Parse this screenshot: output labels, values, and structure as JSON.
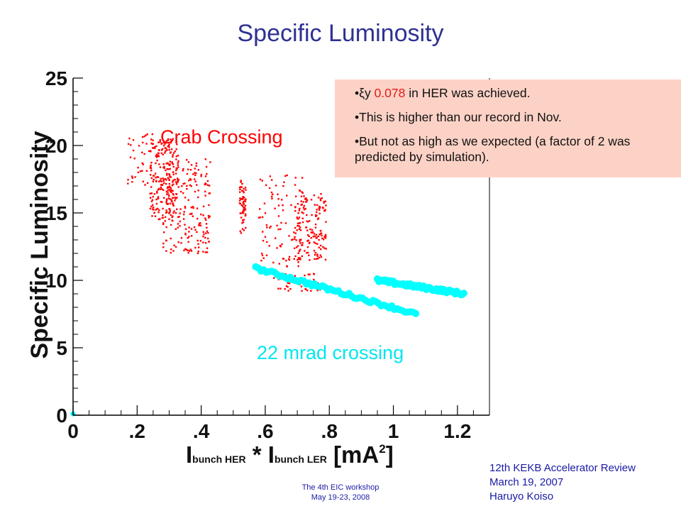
{
  "slide": {
    "title": "Specific Luminosity"
  },
  "notes": {
    "bullet1_prefix": "•ξy  ",
    "bullet1_value": "0.078",
    "bullet1_suffix": " in HER was achieved.",
    "bullet2": "•This is higher than our record in Nov.",
    "bullet3": "•But not as high as we expected (a factor of 2 was predicted by simulation)."
  },
  "labels": {
    "crab": "Crab Crossing",
    "mrad": "22 mrad crossing"
  },
  "footer": {
    "review_line1": "12th KEKB Accelerator Review",
    "review_line2": "March 19, 2007",
    "review_line3": "Haruyo Koiso",
    "workshop_line1": "The 4th EIC workshop",
    "workshop_line2": "May 19-23, 2008"
  },
  "axis": {
    "ylabel": "Specific Luminosity",
    "xlabel_I1": "I",
    "xlabel_sub1": "bunch HER",
    "xlabel_mid": " * I",
    "xlabel_sub2": "bunch LER",
    "xlabel_unit_open": " [mA",
    "xlabel_sup": "2",
    "xlabel_unit_close": "]"
  },
  "chart_data": {
    "type": "scatter",
    "xlim": [
      0,
      1.3
    ],
    "ylim": [
      0,
      25
    ],
    "x_tick_labels": [
      "0",
      ".2",
      ".4",
      ".6",
      ".8",
      "1",
      "1.2"
    ],
    "x_tick_values": [
      0,
      0.2,
      0.4,
      0.6,
      0.8,
      1.0,
      1.2
    ],
    "y_tick_labels": [
      "0",
      "5",
      "10",
      "15",
      "20",
      "25"
    ],
    "y_tick_values": [
      0,
      5,
      10,
      15,
      20,
      25
    ],
    "grid": false,
    "series": [
      {
        "name": "Crab Crossing",
        "color": "#ff0000",
        "clusters": [
          {
            "x": [
              0.24,
              0.33
            ],
            "y": [
              14.5,
              20.5
            ],
            "n": 220
          },
          {
            "x": [
              0.28,
              0.43
            ],
            "y": [
              12.0,
              19.0
            ],
            "n": 200
          },
          {
            "x": [
              0.17,
              0.25
            ],
            "y": [
              17.0,
              21.0
            ],
            "n": 40
          },
          {
            "x": [
              0.52,
              0.54
            ],
            "y": [
              13.5,
              17.5
            ],
            "n": 60
          },
          {
            "x": [
              0.58,
              0.72
            ],
            "y": [
              11.0,
              18.0
            ],
            "n": 90
          },
          {
            "x": [
              0.69,
              0.79
            ],
            "y": [
              11.5,
              16.5
            ],
            "n": 160
          },
          {
            "x": [
              0.62,
              0.78
            ],
            "y": [
              9.2,
              10.5
            ],
            "n": 40
          }
        ]
      },
      {
        "name": "22 mrad crossing",
        "color": "#00ffff",
        "segments": [
          {
            "x": [
              0.57,
              1.07
            ],
            "y": [
              10.9,
              7.5
            ]
          },
          {
            "x": [
              0.95,
              1.22
            ],
            "y": [
              10.0,
              9.0
            ]
          }
        ],
        "extra_points": [
          {
            "x": 0.0,
            "y": 0.1
          }
        ]
      }
    ]
  }
}
